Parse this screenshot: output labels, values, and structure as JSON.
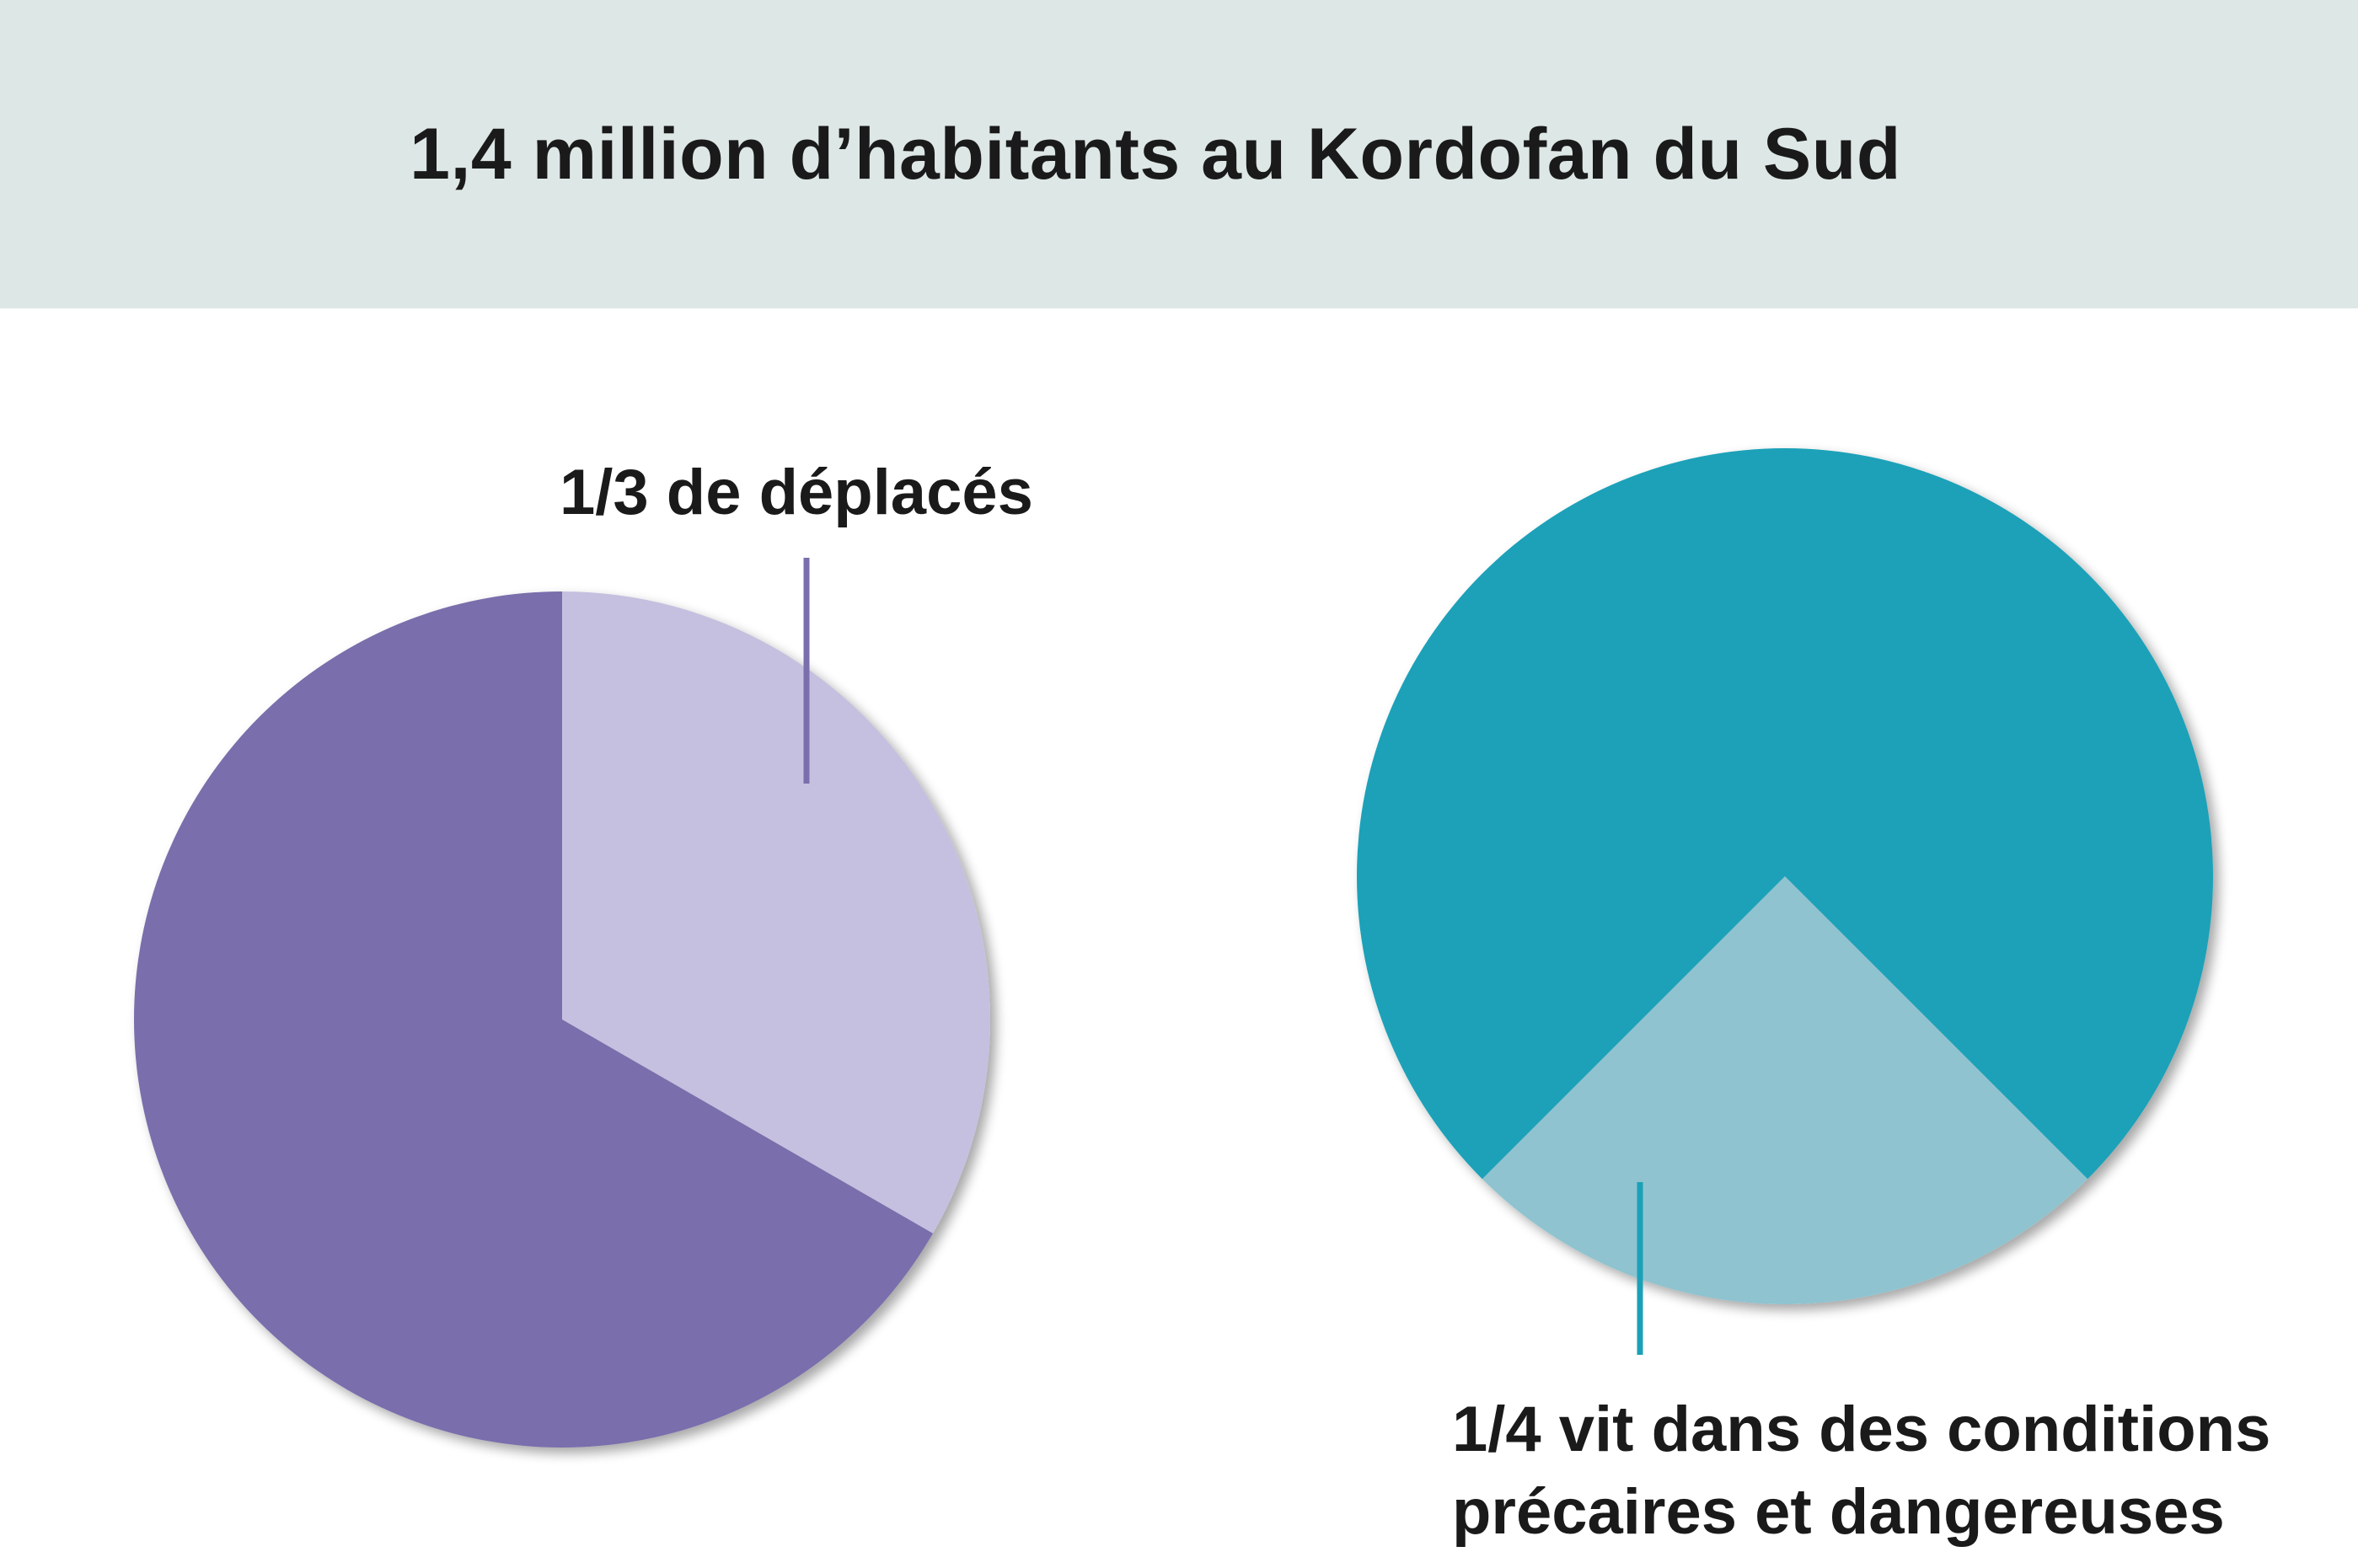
{
  "title": "1,4 million d’habitants au Kordofan du Sud",
  "chart_data": [
    {
      "type": "pie",
      "slices": [
        {
          "label": "1/3 de déplacés",
          "value": 0.3333,
          "color": "#c5c0df"
        },
        {
          "label": "",
          "value": 0.6667,
          "color": "#7a6eac"
        }
      ],
      "leader_color": "#7a6eac"
    },
    {
      "type": "pie",
      "slices": [
        {
          "label": "1/4 vit dans des conditions précaires et dangereuses",
          "value": 0.25,
          "color": "#8fc3cf"
        },
        {
          "label": "",
          "value": 0.75,
          "color": "#1aa1b8"
        }
      ],
      "label_lines": [
        "1/4 vit dans des conditions",
        "précaires et dangereuses"
      ],
      "leader_color": "#1aa1b8"
    }
  ]
}
